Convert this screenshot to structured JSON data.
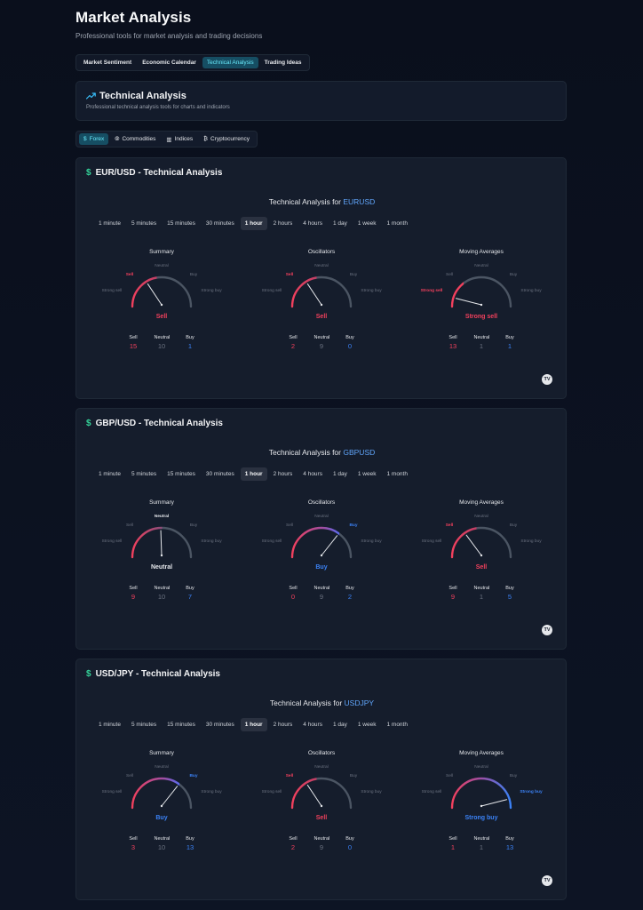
{
  "page": {
    "title": "Market Analysis",
    "subtitle": "Professional tools for market analysis and trading decisions"
  },
  "main_tabs": [
    {
      "label": "Market Sentiment",
      "active": false
    },
    {
      "label": "Economic Calendar",
      "active": false
    },
    {
      "label": "Technical Analysis",
      "active": true
    },
    {
      "label": "Trading Ideas",
      "active": false
    }
  ],
  "ta_header": {
    "title": "Technical Analysis",
    "subtitle": "Professional technical analysis tools for charts and indicators",
    "icon": "trending-up-icon"
  },
  "asset_tabs": [
    {
      "label": "Forex",
      "icon": "$",
      "active": true
    },
    {
      "label": "Commodities",
      "icon": "⦾",
      "active": false
    },
    {
      "label": "Indices",
      "icon": "▥",
      "active": false
    },
    {
      "label": "Cryptocurrency",
      "icon": "₿",
      "active": false
    }
  ],
  "intervals": [
    "1 minute",
    "5 minutes",
    "15 minutes",
    "30 minutes",
    "1 hour",
    "2 hours",
    "4 hours",
    "1 day",
    "1 week",
    "1 month"
  ],
  "active_interval": "1 hour",
  "gauge_scale": {
    "strong_sell": "Strong sell",
    "sell": "Sell",
    "neutral": "Neutral",
    "buy": "Buy",
    "strong_buy": "Strong buy"
  },
  "count_labels": {
    "sell": "Sell",
    "neutral": "Neutral",
    "buy": "Buy"
  },
  "colors": {
    "sell": "#f2405d",
    "neutral": "#9ca3af",
    "buy": "#3b82f6",
    "accent": "#67e8f9",
    "symbol": "#60a5fa"
  },
  "heading_prefix": "Technical Analysis for",
  "pairs": [
    {
      "title": "EUR/USD - Technical Analysis",
      "symbol": "EURUSD",
      "gauges": [
        {
          "name": "Summary",
          "verdict": "Sell",
          "level": "sell",
          "needle": -0.35,
          "sell": 15,
          "neutral": 10,
          "buy": 1
        },
        {
          "name": "Oscillators",
          "verdict": "Sell",
          "level": "sell",
          "needle": -0.35,
          "sell": 2,
          "neutral": 9,
          "buy": 0
        },
        {
          "name": "Moving Averages",
          "verdict": "Strong sell",
          "level": "strong_sell",
          "needle": -0.8,
          "sell": 13,
          "neutral": 1,
          "buy": 1
        }
      ]
    },
    {
      "title": "GBP/USD - Technical Analysis",
      "symbol": "GBPUSD",
      "gauges": [
        {
          "name": "Summary",
          "verdict": "Neutral",
          "level": "neutral",
          "needle": -0.02,
          "sell": 9,
          "neutral": 10,
          "buy": 7
        },
        {
          "name": "Oscillators",
          "verdict": "Buy",
          "level": "buy",
          "needle": 0.4,
          "sell": 0,
          "neutral": 9,
          "buy": 2
        },
        {
          "name": "Moving Averages",
          "verdict": "Sell",
          "level": "sell",
          "needle": -0.38,
          "sell": 9,
          "neutral": 1,
          "buy": 5
        }
      ]
    },
    {
      "title": "USD/JPY - Technical Analysis",
      "symbol": "USDJPY",
      "gauges": [
        {
          "name": "Summary",
          "verdict": "Buy",
          "level": "buy",
          "needle": 0.4,
          "sell": 3,
          "neutral": 10,
          "buy": 13
        },
        {
          "name": "Oscillators",
          "verdict": "Sell",
          "level": "sell",
          "needle": -0.35,
          "sell": 2,
          "neutral": 9,
          "buy": 0
        },
        {
          "name": "Moving Averages",
          "verdict": "Strong buy",
          "level": "strong_buy",
          "needle": 0.8,
          "sell": 1,
          "neutral": 1,
          "buy": 13
        }
      ]
    }
  ],
  "tv_logo": "TV"
}
